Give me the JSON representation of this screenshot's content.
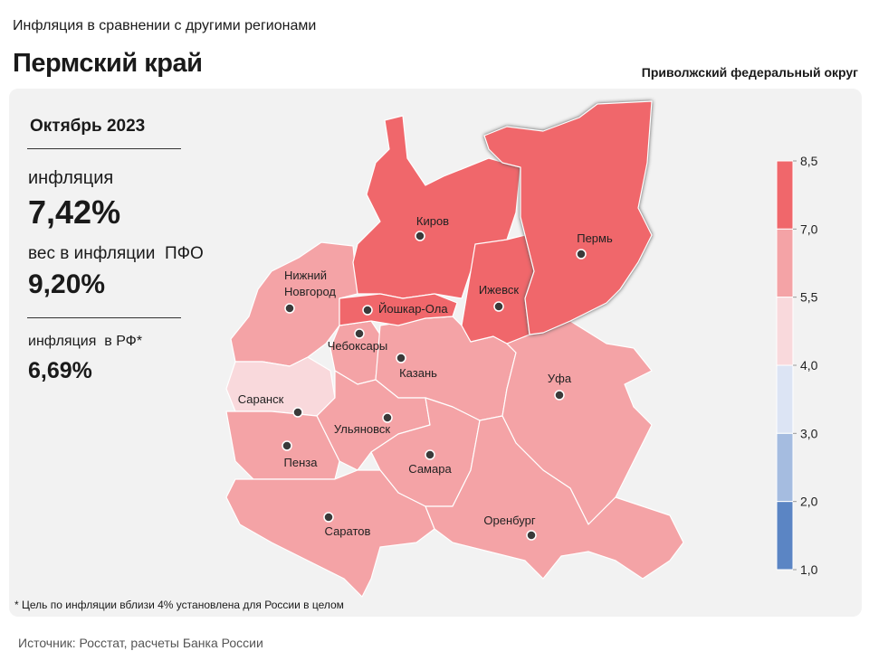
{
  "header": {
    "subtitle": "Инфляция в сравнении с другими регионами",
    "title": "Пермский край",
    "district": "Приволжский федеральный округ"
  },
  "panel": {
    "period": "Октябрь 2023",
    "inflation_label": "инфляция",
    "inflation_value": "7,42%",
    "weight_label": "вес в инфляции  ПФО",
    "weight_value": "9,20%",
    "rf_label": "инфляция  в РФ*",
    "rf_value": "6,69%"
  },
  "cities": [
    {
      "name": "Киров"
    },
    {
      "name": "Пермь"
    },
    {
      "name_lines": [
        "Нижний",
        "Новгород"
      ]
    },
    {
      "name": "Ижевск"
    },
    {
      "name": "Йошкар-Ола"
    },
    {
      "name": "Чебоксары"
    },
    {
      "name": "Казань"
    },
    {
      "name": "Уфа"
    },
    {
      "name": "Саранск"
    },
    {
      "name": "Ульяновск"
    },
    {
      "name": "Пенза"
    },
    {
      "name": "Самара"
    },
    {
      "name": "Саратов"
    },
    {
      "name": "Оренбург"
    }
  ],
  "legend": {
    "ticks": [
      {
        "value": 8.5,
        "label": "8,5"
      },
      {
        "value": 7.0,
        "label": "7,0"
      },
      {
        "value": 5.5,
        "label": "5,5"
      },
      {
        "value": 4.0,
        "label": "4,0"
      },
      {
        "value": 3.0,
        "label": "3,0"
      },
      {
        "value": 2.0,
        "label": "2,0"
      },
      {
        "value": 1.0,
        "label": "1,0"
      }
    ],
    "colors": [
      "#f0676b",
      "#f4a3a6",
      "#f9d9dc",
      "#dce4f4",
      "#a5bce0",
      "#5b85c4"
    ]
  },
  "footnote": "* Цель по инфляции вблизи 4% установлена для России в целом",
  "source": "Источник: Росстат, расчеты Банка России"
}
